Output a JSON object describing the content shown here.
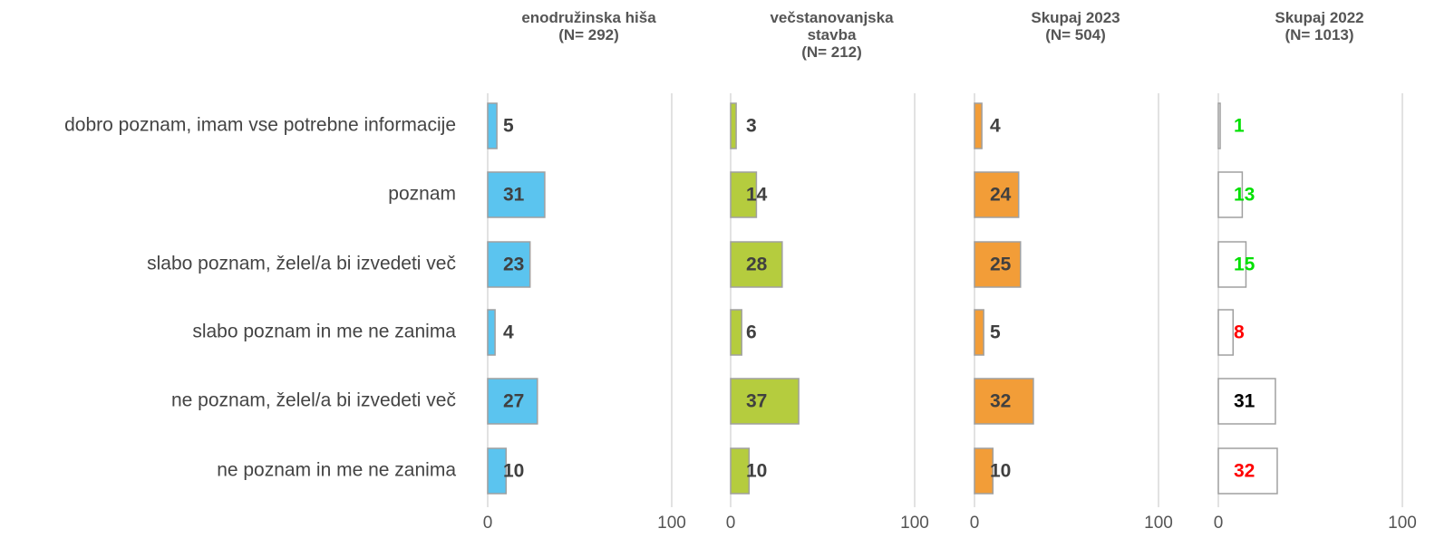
{
  "chart_data": [
    {
      "type": "bar",
      "title": "enodružinska hiša",
      "subtitle": "(N= 292)",
      "categories": [
        "dobro poznam, imam vse potrebne informacije",
        "poznam",
        "slabo poznam, želel/a bi izvedeti več",
        "slabo poznam in me ne zanima",
        "ne poznam, želel/a bi izvedeti več",
        "ne poznam in me ne zanima"
      ],
      "values": [
        5,
        31,
        23,
        4,
        27,
        10
      ],
      "color": "#5bc4ef",
      "label_color": "#404040",
      "xlim": [
        0,
        100
      ],
      "xticks": [
        0,
        100
      ],
      "grid": true
    },
    {
      "type": "bar",
      "title": "večstanovanjska stavba",
      "subtitle": "(N= 212)",
      "values": [
        3,
        14,
        28,
        6,
        37,
        10
      ],
      "color": "#b5cc3e",
      "label_color": "#404040",
      "xlim": [
        0,
        100
      ],
      "xticks": [
        0,
        100
      ],
      "grid": true
    },
    {
      "type": "bar",
      "title": "Skupaj 2023",
      "subtitle": "(N= 504)",
      "values": [
        4,
        24,
        25,
        5,
        32,
        10
      ],
      "color": "#f29d38",
      "label_color": "#404040",
      "xlim": [
        0,
        100
      ],
      "xticks": [
        0,
        100
      ],
      "grid": true
    },
    {
      "type": "bar",
      "title": "Skupaj 2022",
      "subtitle": "(N= 1013)",
      "values": [
        1,
        13,
        15,
        8,
        31,
        32
      ],
      "color": "#ffffff",
      "label_colors": [
        "#00e000",
        "#00e000",
        "#00e000",
        "#ff0000",
        "#000000",
        "#ff0000"
      ],
      "xlim": [
        0,
        100
      ],
      "xticks": [
        0,
        100
      ],
      "grid": true
    }
  ]
}
